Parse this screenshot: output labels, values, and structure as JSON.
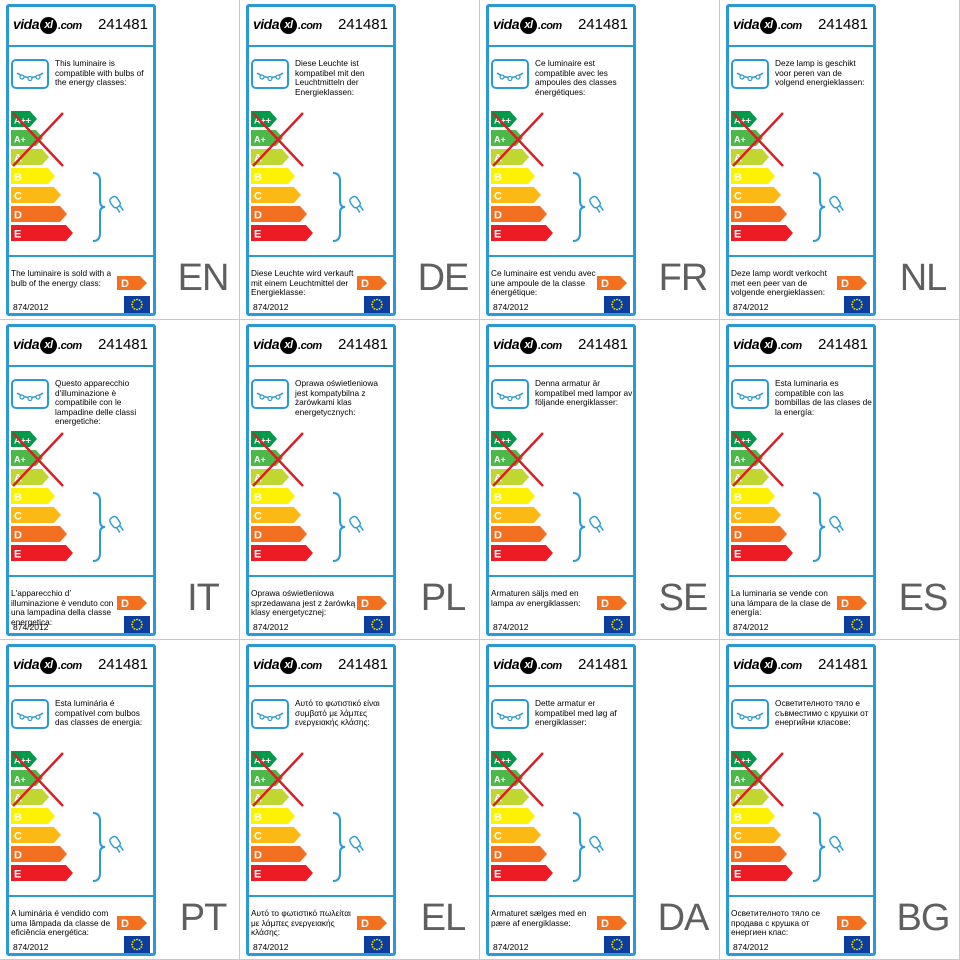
{
  "brand": {
    "logo_prefix": "vida",
    "logo_mark": "xl",
    "logo_suffix": ".com"
  },
  "product_code": "241481",
  "regulation": "874/2012",
  "energy_scale": {
    "classes": [
      "A++",
      "A+",
      "A",
      "B",
      "C",
      "D",
      "E"
    ],
    "colors": [
      "#009a4a",
      "#4cb847",
      "#bfd730",
      "#fff200",
      "#fdb913",
      "#f37021",
      "#ed1c24"
    ],
    "crossed_out_classes": [
      "A++",
      "A+",
      "A"
    ],
    "cross_color": "#d81f26",
    "sold_with_class": "D"
  },
  "colors": {
    "frame": "#2a9ad6",
    "language_code": "#5f5f5f",
    "eu_flag": "#0a3d9c",
    "eu_stars": "#ffe600"
  },
  "icons": [
    "lamp-icon",
    "bulb-icon",
    "eu-flag-icon",
    "bracket-icon"
  ],
  "labels": [
    {
      "lang": "EN",
      "compatible_text": "This luminaire is compatible with bulbs of the energy classes:",
      "sold_text": "The luminaire is sold with a bulb of the energy class:"
    },
    {
      "lang": "DE",
      "compatible_text": "Diese Leuchte ist kompatibel mit den Leuchtmitteln der Energieklassen:",
      "sold_text": "Diese Leuchte wird verkauft mit einem Leuchtmittel der Energieklasse:"
    },
    {
      "lang": "FR",
      "compatible_text": "Ce luminaire est compatible avec les ampoules des classes énergétiques:",
      "sold_text": "Ce luminaire est vendu avec une ampoule de la classe énergétique:"
    },
    {
      "lang": "NL",
      "compatible_text": "Deze lamp is geschikt voor peren van de volgend energieklassen:",
      "sold_text": "Deze lamp wordt verkocht met een peer van de volgende energieklassen:"
    },
    {
      "lang": "IT",
      "compatible_text": "Questo apparecchio d'illuminazione è compatibile con le lampadine delle classi energetiche:",
      "sold_text": "L'apparecchio d’ illuminazione è venduto con una lampadina della classe energetica:"
    },
    {
      "lang": "PL",
      "compatible_text": "Oprawa oświetleniowa jest kompatybilna z żarówkami klas energetycznych:",
      "sold_text": "Oprawa oświetleniowa sprzedawana jest z żarówką klasy energetycznej:"
    },
    {
      "lang": "SE",
      "compatible_text": "Denna armatur är kompatibel med lampor av följande energiklasser:",
      "sold_text": "Armaturen säljs med en lampa av energiklassen:"
    },
    {
      "lang": "ES",
      "compatible_text": "Esta luminaria es compatible con las bombillas de las clases de la energía:",
      "sold_text": "La luminaria se vende con una lámpara de la clase de energía:"
    },
    {
      "lang": "PT",
      "compatible_text": "Esta luminária é compatível com bulbos das classes de energia:",
      "sold_text": "A luminária é vendido com uma lâmpada da classe de eficiência energética:"
    },
    {
      "lang": "EL",
      "compatible_text": "Αυτό το φωτιστικό είναι συμβατό με λάμπες ενεργειακής κλάσης:",
      "sold_text": "Αυτό το φωτιστικό πωλείται με λάμπες ενεργειακής κλάσης:"
    },
    {
      "lang": "DA",
      "compatible_text": "Dette armatur er kompatibel med løg af energiklasser:",
      "sold_text": "Armaturet sælges med en pære af energiklasse:"
    },
    {
      "lang": "BG",
      "compatible_text": "Осветителното тяло е съвместимо с крушки от енергийни класове:",
      "sold_text": "Осветителното тяло се продава с крушка от енергиен клас:"
    }
  ]
}
